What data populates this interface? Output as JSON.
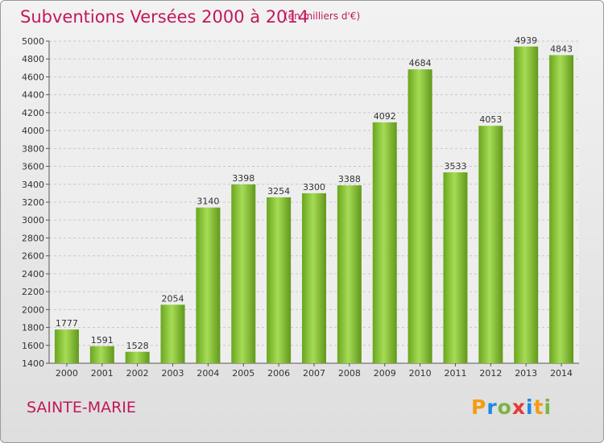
{
  "chart_data": {
    "type": "bar",
    "title": "Subventions Versées 2000 à 2014",
    "subtitle": "(en milliers d'€)",
    "categories": [
      "2000",
      "2001",
      "2002",
      "2003",
      "2004",
      "2005",
      "2006",
      "2007",
      "2008",
      "2009",
      "2010",
      "2011",
      "2012",
      "2013",
      "2014"
    ],
    "values": [
      1777,
      1591,
      1528,
      2054,
      3140,
      3398,
      3254,
      3300,
      3388,
      4092,
      4684,
      3533,
      4053,
      4939,
      4843
    ],
    "ylim": [
      1400,
      5000
    ],
    "yticks": [
      1400,
      1600,
      1800,
      2000,
      2200,
      2400,
      2600,
      2800,
      3000,
      3200,
      3400,
      3600,
      3800,
      4000,
      4200,
      4400,
      4600,
      4800,
      5000
    ],
    "grid": true,
    "bar_color": "#7cb82f",
    "xlabel": "",
    "ylabel": ""
  },
  "commune": "SAINTE-MARIE",
  "logo_letters": [
    "P",
    "r",
    "o",
    "x",
    "i",
    "t",
    "i"
  ]
}
